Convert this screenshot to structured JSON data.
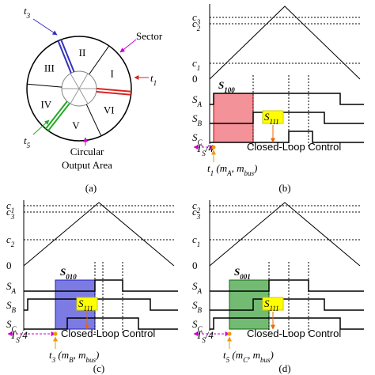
{
  "panel_a": {
    "sectors": [
      "I",
      "II",
      "III",
      "IV",
      "V",
      "VI"
    ],
    "sector_label": "Sector",
    "times": [
      [
        "t",
        "1"
      ],
      [
        "t",
        "3"
      ],
      [
        "t",
        "5"
      ]
    ],
    "area_label": [
      "Circular",
      "Output Area"
    ],
    "caption": "(a)"
  },
  "panels": [
    {
      "levels": [
        [
          "c",
          "3"
        ],
        [
          "c",
          "2"
        ],
        [
          "c",
          "1"
        ],
        "0"
      ],
      "signals": [
        [
          "S",
          "A"
        ],
        [
          "S",
          "B"
        ],
        [
          "S",
          "C"
        ]
      ],
      "vector": [
        "S",
        "100"
      ],
      "zero_vector": [
        "S",
        "111"
      ],
      "period": [
        "T",
        "S",
        "/4"
      ],
      "control": "Closed-Loop Control",
      "time": [
        "t",
        "1",
        "  (m",
        "A",
        ", m",
        "bus",
        ")"
      ],
      "caption": "(b)"
    },
    {
      "levels": [
        [
          "c",
          "1"
        ],
        [
          "c",
          "3"
        ],
        [
          "c",
          "2"
        ],
        "0"
      ],
      "signals": [
        [
          "S",
          "A"
        ],
        [
          "S",
          "B"
        ],
        [
          "S",
          "C"
        ]
      ],
      "vector": [
        "S",
        "010"
      ],
      "zero_vector": [
        "S",
        "111"
      ],
      "period": [
        "T",
        "S",
        "/4"
      ],
      "control": "Closed-Loop Control",
      "time": [
        "t",
        "3",
        "  (m",
        "B",
        ", m",
        "bus",
        ")"
      ],
      "caption": "(c)"
    },
    {
      "levels": [
        [
          "c",
          "2"
        ],
        [
          "c",
          "3"
        ],
        [
          "c",
          "1"
        ],
        "0"
      ],
      "signals": [
        [
          "S",
          "A"
        ],
        [
          "S",
          "B"
        ],
        [
          "S",
          "C"
        ]
      ],
      "vector": [
        "S",
        "001"
      ],
      "zero_vector": [
        "S",
        "111"
      ],
      "period": [
        "T",
        "S",
        "/4"
      ],
      "control": "Closed-Loop Control",
      "time": [
        "t",
        "5",
        "  (m",
        "C",
        ", m",
        "bus",
        ")"
      ],
      "caption": "(d)"
    }
  ]
}
